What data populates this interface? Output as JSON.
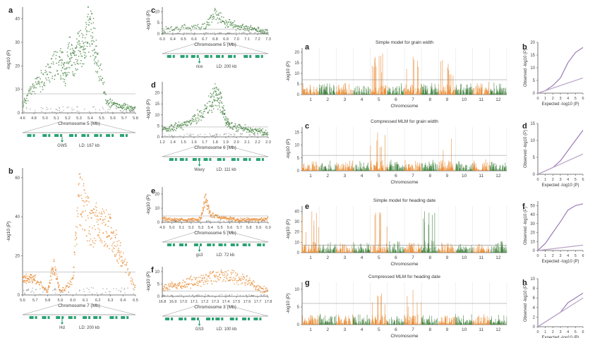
{
  "panel_letters": {
    "left": [
      "a",
      "b",
      "c",
      "d",
      "e",
      "f"
    ],
    "right": [
      "a",
      "b",
      "c",
      "d",
      "e",
      "f",
      "g",
      "h"
    ]
  },
  "labels": {
    "y_logp": "-log10 (P)",
    "observed": "Observed -log10 (P)",
    "expected": "Expected -log10 (P)",
    "chromosome": "Chromosome"
  },
  "colors": {
    "green": "#3f7f3a",
    "orange": "#e8872c",
    "gene": "#2aa272",
    "red": "#c0392b",
    "grey": "#888888"
  },
  "chart_data": [
    {
      "panel": "a",
      "type": "scatter",
      "xlabel": "Chromosome 5 (Mb)",
      "x_ticks": [
        "4.6",
        "4.8",
        "5.0",
        "5.1",
        "5.2",
        "5.3",
        "5.4",
        "5.5",
        "5.6",
        "5.7",
        "5.8"
      ],
      "y_ticks": [
        "0",
        "10",
        "20",
        "30",
        "40"
      ],
      "ylim": [
        0,
        45
      ],
      "annotation": {
        "gene": "GW5",
        "ld": "LD: 167 kb"
      },
      "series": [
        {
          "color": "green",
          "x": [
            4.6,
            4.7,
            4.8,
            4.9,
            5.0,
            5.05,
            5.1,
            5.15,
            5.2,
            5.25,
            5.3,
            5.35,
            5.4,
            5.5,
            5.6,
            5.7,
            5.8
          ],
          "y": [
            4,
            12,
            16,
            22,
            26,
            20,
            30,
            24,
            34,
            30,
            42,
            38,
            25,
            5,
            4,
            3,
            2
          ]
        }
      ]
    },
    {
      "panel": "b",
      "type": "scatter",
      "xlabel": "Chromosome 7 (Mb)",
      "x_ticks": [
        "5.6",
        "5.7",
        "5.8",
        "5.9",
        "6.0",
        "6.1",
        "6.2",
        "6.3",
        "6.4",
        "6.5"
      ],
      "y_ticks": [
        "0",
        "20",
        "40",
        "60"
      ],
      "ylim": [
        0,
        65
      ],
      "annotation": {
        "gene": "Hd",
        "ld": "LD: 200 kb"
      },
      "series": [
        {
          "color": "orange",
          "x": [
            5.6,
            5.65,
            5.7,
            5.8,
            5.85,
            5.9,
            6.0,
            6.05,
            6.1,
            6.15,
            6.2,
            6.25,
            6.3,
            6.35,
            6.4,
            6.5
          ],
          "y": [
            10,
            10,
            10,
            2,
            18,
            2,
            8,
            60,
            50,
            40,
            45,
            40,
            38,
            30,
            20,
            4
          ]
        }
      ]
    },
    {
      "panel": "c",
      "type": "scatter",
      "xlabel": "Chromosome 5 (Mb)",
      "x_ticks": [
        "6.3",
        "6.4",
        "6.5",
        "6.6",
        "6.7",
        "6.8",
        "6.9",
        "7.0",
        "7.1",
        "7.2",
        "7.3"
      ],
      "y_ticks": [
        "0",
        "5",
        "10"
      ],
      "ylim": [
        0,
        12
      ],
      "annotation": {
        "gene": "rice",
        "ld": "LD: 200 kb"
      },
      "series": [
        {
          "color": "green",
          "x": [
            6.3,
            6.5,
            6.7,
            6.8,
            6.9,
            7.0,
            7.1,
            7.2,
            7.3
          ],
          "y": [
            2,
            3,
            4,
            10,
            6,
            4,
            3,
            2,
            1
          ]
        }
      ]
    },
    {
      "panel": "d",
      "type": "scatter",
      "xlabel": "Chromosome 6 (Mb)",
      "x_ticks": [
        "1.2",
        "1.4",
        "1.5",
        "1.6",
        "1.7",
        "1.8",
        "1.9",
        "2.0",
        "2.1",
        "2.2",
        "2.3"
      ],
      "y_ticks": [
        "0",
        "5",
        "10",
        "15",
        "20"
      ],
      "ylim": [
        0,
        25
      ],
      "annotation": {
        "gene": "Waxy",
        "ld": "LD: 111 kb"
      },
      "series": [
        {
          "color": "green",
          "x": [
            1.2,
            1.3,
            1.4,
            1.5,
            1.6,
            1.7,
            1.75,
            1.8,
            1.85,
            1.9,
            2.0,
            2.1,
            2.2,
            2.3
          ],
          "y": [
            4,
            5,
            6,
            8,
            12,
            18,
            22,
            20,
            10,
            6,
            5,
            4,
            3,
            2
          ]
        }
      ]
    },
    {
      "panel": "e",
      "type": "scatter",
      "xlabel": "Chromosome 5 (Mb)",
      "x_ticks": [
        "4.9",
        "5.0",
        "5.1",
        "5.2",
        "5.3",
        "5.4",
        "5.5",
        "5.6",
        "5.7",
        "5.8",
        "5.9",
        "6.0"
      ],
      "y_ticks": [
        "0",
        "10",
        "20"
      ],
      "ylim": [
        0,
        25
      ],
      "annotation": {
        "gene": "gs3",
        "ld": "LD: 72 kb"
      },
      "series": [
        {
          "color": "orange",
          "x": [
            4.9,
            5.0,
            5.1,
            5.2,
            5.3,
            5.35,
            5.4,
            5.5,
            5.6,
            5.7,
            5.8,
            5.9,
            6.0
          ],
          "y": [
            3,
            2,
            2,
            2,
            3,
            20,
            6,
            4,
            3,
            2,
            2,
            2,
            3
          ]
        }
      ]
    },
    {
      "panel": "f",
      "type": "scatter",
      "xlabel": "Chromosome 3 (Mb)",
      "x_ticks": [
        "16.8",
        "16.9",
        "17.0",
        "17.1",
        "17.2",
        "17.3",
        "17.4",
        "17.5",
        "17.6",
        "17.7",
        "17.8"
      ],
      "y_ticks": [
        "0",
        "5",
        "10"
      ],
      "ylim": [
        0,
        12
      ],
      "annotation": {
        "gene": "GS3",
        "ld": "LD: 100 kb"
      },
      "series": [
        {
          "color": "orange",
          "x": [
            16.8,
            16.9,
            17.0,
            17.1,
            17.2,
            17.3,
            17.4,
            17.5,
            17.6,
            17.7,
            17.8
          ],
          "y": [
            4,
            5,
            6,
            7,
            8,
            9,
            10,
            9,
            7,
            4,
            3
          ]
        }
      ]
    },
    {
      "panel": "a",
      "type": "manhattan",
      "title": "Simple model for grain width",
      "xlabel": "Chromosome",
      "x_ticks": [
        "1",
        "2",
        "3",
        "4",
        "5",
        "6",
        "7",
        "8",
        "9",
        "10",
        "11",
        "12"
      ],
      "y_ticks": [
        "0",
        "5",
        "10",
        "15",
        "20"
      ],
      "ylim": [
        0,
        22
      ],
      "threshold": 7
    },
    {
      "panel": "c",
      "type": "manhattan",
      "title": "Compressed MLM for grain width",
      "xlabel": "Chromosome",
      "x_ticks": [
        "1",
        "2",
        "3",
        "4",
        "5",
        "6",
        "7",
        "8",
        "9",
        "10",
        "11",
        "12"
      ],
      "y_ticks": [
        "0",
        "5",
        "10",
        "15"
      ],
      "ylim": [
        0,
        17
      ],
      "threshold": 6
    },
    {
      "panel": "e",
      "type": "manhattan",
      "title": "Simple model for heading date",
      "xlabel": "Chromosome",
      "x_ticks": [
        "1",
        "2",
        "3",
        "4",
        "5",
        "6",
        "7",
        "8",
        "9",
        "10",
        "11",
        "12"
      ],
      "y_ticks": [
        "0",
        "10",
        "20",
        "30",
        "40"
      ],
      "ylim": [
        0,
        45
      ],
      "threshold": 7
    },
    {
      "panel": "g",
      "type": "manhattan",
      "title": "Compressed MLM for heading date",
      "xlabel": "Chromosome",
      "x_ticks": [
        "1",
        "2",
        "3",
        "4",
        "5",
        "6",
        "7",
        "8",
        "9",
        "10",
        "11",
        "12"
      ],
      "y_ticks": [
        "0",
        "5",
        "10"
      ],
      "ylim": [
        0,
        12
      ],
      "threshold": 6
    },
    {
      "panel": "b",
      "type": "line",
      "xlabel": "Expected -log10 (P)",
      "ylabel": "Observed -log10 (P)",
      "x_ticks": [
        "0",
        "1",
        "2",
        "3",
        "4",
        "5",
        "6"
      ],
      "y_ticks": [
        "0",
        "5",
        "10",
        "15",
        "20"
      ],
      "ylim": [
        0,
        20
      ],
      "series": [
        {
          "x": [
            0,
            1,
            2,
            3,
            4,
            5,
            6
          ],
          "y": [
            0,
            1,
            3,
            6,
            12,
            16,
            18
          ]
        },
        {
          "x": [
            0,
            6
          ],
          "y": [
            0,
            6
          ]
        }
      ]
    },
    {
      "panel": "d",
      "type": "line",
      "xlabel": "Expected -log10 (P)",
      "ylabel": "Observed -log10 (P)",
      "x_ticks": [
        "0",
        "1",
        "2",
        "3",
        "4",
        "5",
        "6"
      ],
      "y_ticks": [
        "0",
        "5",
        "10",
        "15"
      ],
      "ylim": [
        0,
        15
      ],
      "series": [
        {
          "x": [
            0,
            1,
            2,
            3,
            4,
            5,
            6
          ],
          "y": [
            0,
            1,
            2,
            4,
            7,
            10,
            13
          ]
        },
        {
          "x": [
            0,
            6
          ],
          "y": [
            0,
            6
          ]
        }
      ]
    },
    {
      "panel": "f",
      "type": "line",
      "xlabel": "Expected -log10 (P)",
      "ylabel": "Observed -log10 (P)",
      "x_ticks": [
        "0",
        "1",
        "2",
        "3",
        "4",
        "5",
        "6"
      ],
      "y_ticks": [
        "0",
        "10",
        "20",
        "30",
        "40",
        "50"
      ],
      "ylim": [
        0,
        55
      ],
      "series": [
        {
          "x": [
            0,
            1,
            2,
            3,
            4,
            5,
            6
          ],
          "y": [
            0,
            8,
            20,
            32,
            45,
            50,
            52
          ]
        },
        {
          "x": [
            0,
            6
          ],
          "y": [
            0,
            6
          ]
        }
      ]
    },
    {
      "panel": "h",
      "type": "line",
      "xlabel": "Expected -log10 (P)",
      "ylabel": "Observed -log10 (P)",
      "x_ticks": [
        "0",
        "1",
        "2",
        "3",
        "4",
        "5",
        "6"
      ],
      "y_ticks": [
        "0",
        "2",
        "4",
        "6",
        "8",
        "10"
      ],
      "ylim": [
        0,
        10
      ],
      "series": [
        {
          "x": [
            0,
            1,
            2,
            3,
            4,
            5,
            6
          ],
          "y": [
            0,
            1,
            2,
            3,
            5,
            6,
            7
          ]
        },
        {
          "x": [
            0,
            6
          ],
          "y": [
            0,
            6
          ]
        }
      ]
    }
  ]
}
